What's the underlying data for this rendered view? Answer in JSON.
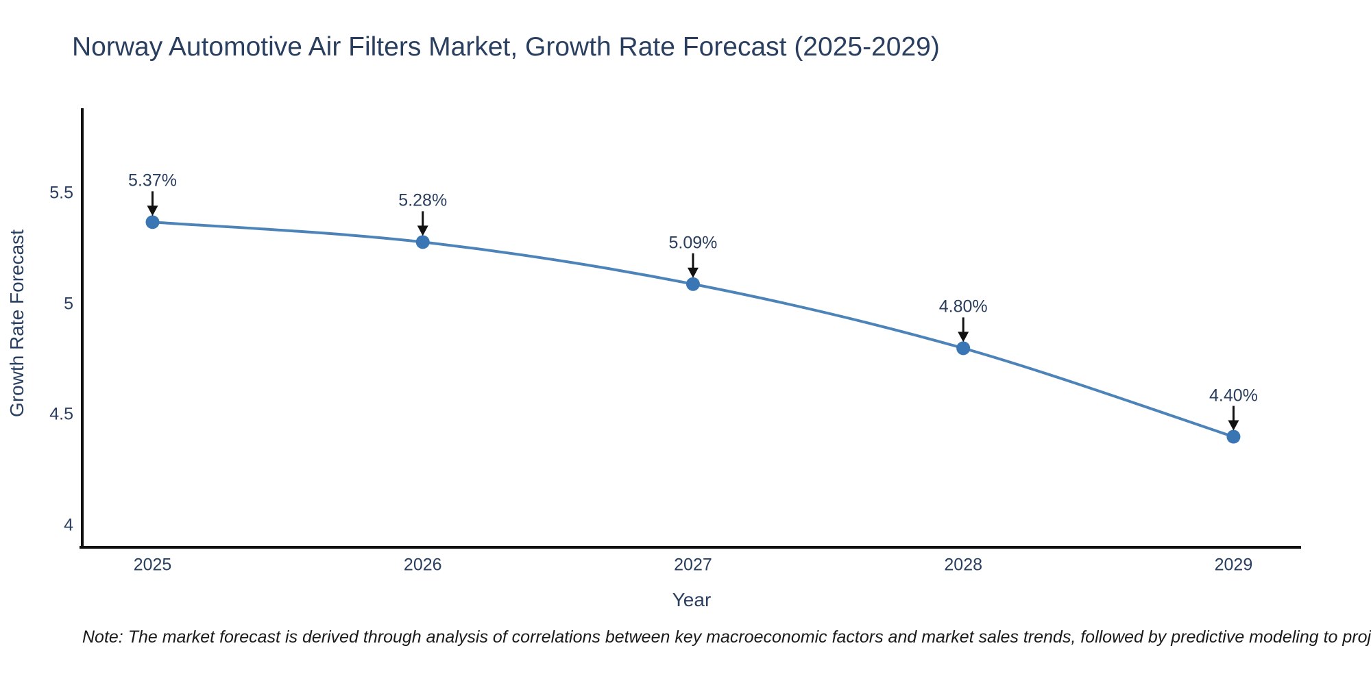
{
  "title": "Norway Automotive Air Filters Market, Growth Rate Forecast (2025-2029)",
  "note": "Note: The market forecast is derived through analysis of correlations between key macroeconomic factors and market sales trends, followed by predictive modeling to project future sales",
  "chart_data": {
    "type": "line",
    "title": "Norway Automotive Air Filters Market, Growth Rate Forecast (2025-2029)",
    "xlabel": "Year",
    "ylabel": "Growth Rate Forecast",
    "x": [
      2025,
      2026,
      2027,
      2028,
      2029
    ],
    "series": [
      {
        "name": "Growth Rate Forecast",
        "values": [
          5.37,
          5.28,
          5.09,
          4.8,
          4.4
        ]
      }
    ],
    "point_labels": [
      "5.37%",
      "5.28%",
      "5.09%",
      "4.80%",
      "4.40%"
    ],
    "xticks": [
      {
        "value": 2025,
        "label": "2025"
      },
      {
        "value": 2026,
        "label": "2026"
      },
      {
        "value": 2027,
        "label": "2027"
      },
      {
        "value": 2028,
        "label": "2028"
      },
      {
        "value": 2029,
        "label": "2029"
      }
    ],
    "yticks": [
      {
        "value": 4.0,
        "label": "4"
      },
      {
        "value": 4.5,
        "label": "4.5"
      },
      {
        "value": 5.0,
        "label": "5"
      },
      {
        "value": 5.5,
        "label": "5.5"
      }
    ],
    "xlim": [
      2024.74,
      2029.25
    ],
    "ylim": [
      3.9,
      5.885
    ],
    "grid": false,
    "legend": "none",
    "line_shape": "spline",
    "colors": {
      "line": "#4c83b8",
      "marker": "#3a76b4",
      "arrow": "#111111",
      "axis": "#111111",
      "text": "#2a3f5f"
    }
  }
}
